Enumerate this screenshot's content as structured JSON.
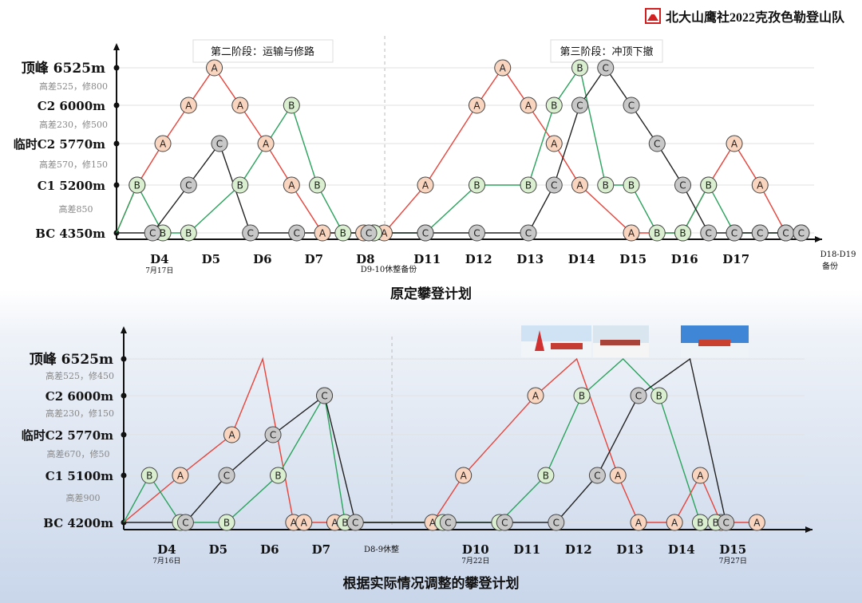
{
  "header": {
    "brand_text": "北大山鹰社2022克孜色勒登山队",
    "logo_icon": "mountain-logo-icon",
    "logo_color": "#d21f1f"
  },
  "colors": {
    "A_line": "#e8433a",
    "B_line": "#2aa35c",
    "C_line": "#222222",
    "A_fill": "#f9d4bf",
    "B_fill": "#d9efcf",
    "C_fill": "#c8c8c8"
  },
  "photos": [
    {
      "name": "summit-photo-1",
      "description_icon": "team-photo-icon"
    },
    {
      "name": "summit-photo-2",
      "description_icon": "team-photo-icon"
    },
    {
      "name": "summit-photo-3",
      "description_icon": "team-photo-icon"
    }
  ],
  "chart_data": [
    {
      "type": "line",
      "title": "原定攀登计划",
      "phase_labels": [
        "第二阶段：运输与修路",
        "第三阶段：冲顶下撤"
      ],
      "y_levels": [
        "BC 4350m",
        "C1 5200m",
        "临时C2 5770m",
        "C2 6000m",
        "顶峰 6525m"
      ],
      "y_altitudes": [
        4350,
        5200,
        5770,
        6000,
        6525
      ],
      "gap_labels": [
        "高差850",
        "高差570，修150",
        "高差230，修500",
        "高差525，修800"
      ],
      "x_ticks": [
        {
          "label": "D4",
          "sub": "7月17日",
          "x": 4
        },
        {
          "label": "D5",
          "sub": "",
          "x": 5
        },
        {
          "label": "D6",
          "sub": "",
          "x": 6
        },
        {
          "label": "D7",
          "sub": "",
          "x": 7
        },
        {
          "label": "D8",
          "sub": "",
          "x": 8
        },
        {
          "label": "D11",
          "sub": "",
          "x": 9.2
        },
        {
          "label": "D12",
          "sub": "",
          "x": 10.2
        },
        {
          "label": "D13",
          "sub": "",
          "x": 11.2
        },
        {
          "label": "D14",
          "sub": "",
          "x": 12.2
        },
        {
          "label": "D15",
          "sub": "",
          "x": 13.2
        },
        {
          "label": "D16",
          "sub": "",
          "x": 14.2
        },
        {
          "label": "D17",
          "sub": "",
          "x": 15.2
        }
      ],
      "extra_labels": [
        "D9-10休整备份",
        "D18-D19",
        "备份"
      ],
      "x_range": [
        3.6,
        17.0
      ],
      "divider_x": 8.5,
      "series": [
        {
          "name": "A",
          "x": [
            3.6,
            4.0,
            4.5,
            5.0,
            5.5,
            6.0,
            6.5,
            7.0,
            7.6,
            8.4,
            8.6,
            8.8,
            9.6,
            10.6,
            11.1,
            11.6,
            12.1,
            12.6,
            13.6,
            14.6,
            15.1,
            15.6,
            16.1,
            16.6,
            16.9
          ],
          "y": [
            0,
            1,
            2,
            3,
            4,
            3,
            2,
            1,
            0,
            0,
            0,
            0,
            1,
            3,
            4,
            3,
            2,
            1,
            0,
            0,
            1,
            2,
            1,
            0,
            0
          ]
        },
        {
          "name": "B",
          "x": [
            3.6,
            4.0,
            4.5,
            5.0,
            6.0,
            7.0,
            7.5,
            8.0,
            8.6,
            9.6,
            10.6,
            11.6,
            12.1,
            12.6,
            13.1,
            13.6,
            14.1,
            14.6,
            15.1,
            15.6,
            16.1,
            16.6,
            16.9
          ],
          "y": [
            0,
            1,
            0,
            0,
            1,
            3,
            1,
            0,
            0,
            0,
            1,
            1,
            3,
            4,
            1,
            1,
            0,
            0,
            1,
            0,
            0,
            0,
            0
          ]
        },
        {
          "name": "C",
          "x": [
            3.6,
            4.3,
            5.0,
            5.6,
            6.2,
            7.1,
            8.5,
            9.6,
            10.6,
            11.6,
            12.1,
            12.6,
            13.1,
            13.6,
            14.1,
            14.6,
            15.1,
            15.6,
            16.1,
            16.6,
            16.9
          ],
          "y": [
            0,
            0,
            1,
            2,
            0,
            0,
            0,
            0,
            0,
            0,
            1,
            3,
            4,
            3,
            2,
            1,
            0,
            0,
            0,
            0,
            0
          ]
        }
      ]
    },
    {
      "type": "line",
      "title": "根据实际情况调整的攀登计划",
      "y_levels": [
        "BC 4200m",
        "C1 5100m",
        "临时C2 5770m",
        "C2 6000m",
        "顶峰 6525m"
      ],
      "y_altitudes": [
        4200,
        5100,
        5770,
        6000,
        6525
      ],
      "gap_labels": [
        "高差900",
        "高差670，修50",
        "高差230，修150",
        "高差525，修450"
      ],
      "x_ticks": [
        {
          "label": "D4",
          "sub": "7月16日",
          "x": 4
        },
        {
          "label": "D5",
          "sub": "",
          "x": 5
        },
        {
          "label": "D6",
          "sub": "",
          "x": 6
        },
        {
          "label": "D7",
          "sub": "",
          "x": 7
        },
        {
          "label": "D10",
          "sub": "7月22日",
          "x": 10
        },
        {
          "label": "D11",
          "sub": "",
          "x": 11
        },
        {
          "label": "D12",
          "sub": "",
          "x": 12
        },
        {
          "label": "D13",
          "sub": "",
          "x": 13
        },
        {
          "label": "D14",
          "sub": "",
          "x": 14
        },
        {
          "label": "D15",
          "sub": "7月27日",
          "x": 15
        }
      ],
      "extra_labels": [
        "D8-9休整"
      ],
      "x_range": [
        3.6,
        17.0
      ],
      "divider_x": 8.5
    }
  ]
}
